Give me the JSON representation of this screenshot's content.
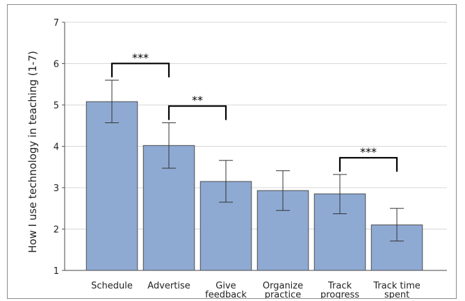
{
  "chart_data": {
    "type": "bar",
    "ylabel": "How I use technology in teaching (1-7)",
    "ylim": [
      1,
      7
    ],
    "yticks": [
      1,
      2,
      3,
      4,
      5,
      6,
      7
    ],
    "grid": true,
    "bar_color": "#8eaad3",
    "categories": [
      [
        "Schedule"
      ],
      [
        "Advertise"
      ],
      [
        "Give",
        "feedback"
      ],
      [
        "Organize",
        "practice"
      ],
      [
        "Track",
        "progress"
      ],
      [
        "Track time",
        "spent"
      ]
    ],
    "values": [
      5.08,
      4.02,
      3.15,
      2.93,
      2.85,
      2.1
    ],
    "error_low": [
      4.57,
      3.47,
      2.65,
      2.45,
      2.37,
      1.71
    ],
    "error_high": [
      5.6,
      4.57,
      3.66,
      3.41,
      3.32,
      2.5
    ],
    "significance": [
      {
        "from": 0,
        "to": 1,
        "label": "***"
      },
      {
        "from": 1,
        "to": 2,
        "label": "**"
      },
      {
        "from": 4,
        "to": 5,
        "label": "***"
      }
    ]
  }
}
